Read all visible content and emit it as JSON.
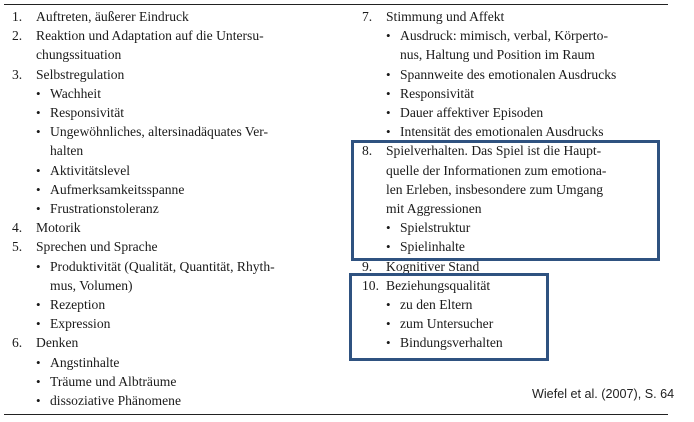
{
  "left_column": {
    "i1": {
      "num": "1.",
      "lines": [
        "Auftreten, äußerer Eindruck"
      ]
    },
    "i2": {
      "num": "2.",
      "lines": [
        "Reaktion und Adaptation auf die Untersu-",
        "chungssituation"
      ]
    },
    "i3": {
      "num": "3.",
      "lines": [
        "Selbstregulation"
      ],
      "subs": [
        {
          "lines": [
            "Wachheit"
          ]
        },
        {
          "lines": [
            "Responsivität"
          ]
        },
        {
          "lines": [
            "Ungewöhnliches, altersinadäquates Ver-",
            "halten"
          ]
        },
        {
          "lines": [
            "Aktivitätslevel"
          ]
        },
        {
          "lines": [
            "Aufmerksamkeitsspanne"
          ]
        },
        {
          "lines": [
            "Frustrationstoleranz"
          ]
        }
      ]
    },
    "i4": {
      "num": "4.",
      "lines": [
        "Motorik"
      ]
    },
    "i5": {
      "num": "5.",
      "lines": [
        "Sprechen und Sprache"
      ],
      "subs": [
        {
          "lines": [
            "Produktivität (Qualität, Quantität, Rhyth-",
            "mus, Volumen)"
          ]
        },
        {
          "lines": [
            "Rezeption"
          ]
        },
        {
          "lines": [
            "Expression"
          ]
        }
      ]
    },
    "i6": {
      "num": "6.",
      "lines": [
        "Denken"
      ],
      "subs": [
        {
          "lines": [
            "Angstinhalte"
          ]
        },
        {
          "lines": [
            "Träume und Albträume"
          ]
        },
        {
          "lines": [
            "dissoziative Phänomene"
          ]
        }
      ]
    }
  },
  "right_column": {
    "i7": {
      "num": "7.",
      "lines": [
        "Stimmung und Affekt"
      ],
      "subs": [
        {
          "lines": [
            "Ausdruck: mimisch, verbal, Körperto-",
            "nus, Haltung und Position im Raum"
          ]
        },
        {
          "lines": [
            "Spannweite des emotionalen Ausdrucks"
          ]
        },
        {
          "lines": [
            "Responsivität"
          ]
        },
        {
          "lines": [
            "Dauer affektiver Episoden"
          ]
        },
        {
          "lines": [
            "Intensität des emotionalen Ausdrucks"
          ]
        }
      ]
    },
    "i8": {
      "num": "8.",
      "lines": [
        "Spielverhalten. Das Spiel ist die Haupt-",
        "quelle der Informationen zum emotiona-",
        "len Erleben, insbesondere zum Umgang",
        "mit Aggressionen"
      ],
      "subs": [
        {
          "lines": [
            "Spielstruktur"
          ]
        },
        {
          "lines": [
            "Spielinhalte"
          ]
        }
      ]
    },
    "i9": {
      "num": "9.",
      "lines": [
        "Kognitiver Stand"
      ]
    },
    "i10": {
      "num": "10.",
      "lines": [
        "Beziehungsqualität"
      ],
      "subs": [
        {
          "lines": [
            "zu den Eltern"
          ]
        },
        {
          "lines": [
            "zum Untersucher"
          ]
        },
        {
          "lines": [
            "Bindungsverhalten"
          ]
        }
      ]
    }
  },
  "bullet_glyph": "•",
  "citation": "Wiefel et al. (2007), S. 64",
  "colors": {
    "highlight_box": "#2f5280",
    "text": "#1a1a1a"
  }
}
